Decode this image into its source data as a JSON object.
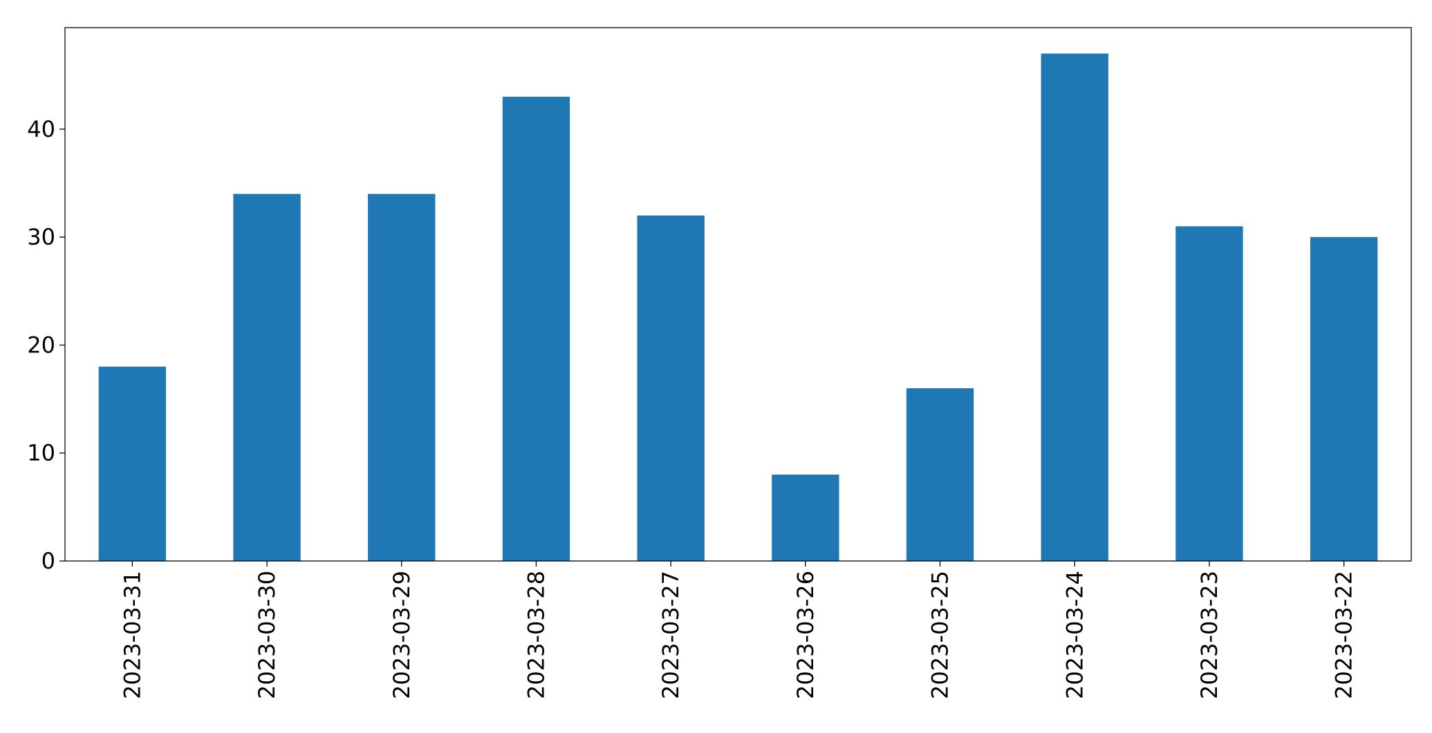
{
  "chart_data": {
    "type": "bar",
    "categories": [
      "2023-03-31",
      "2023-03-30",
      "2023-03-29",
      "2023-03-28",
      "2023-03-27",
      "2023-03-26",
      "2023-03-25",
      "2023-03-24",
      "2023-03-23",
      "2023-03-22"
    ],
    "values": [
      18,
      34,
      34,
      43,
      32,
      8,
      16,
      47,
      31,
      30
    ],
    "color": "#1f77b4",
    "ylim": [
      0,
      49.4
    ],
    "yticks": [
      0,
      10,
      20,
      30,
      40
    ],
    "grid": false
  }
}
